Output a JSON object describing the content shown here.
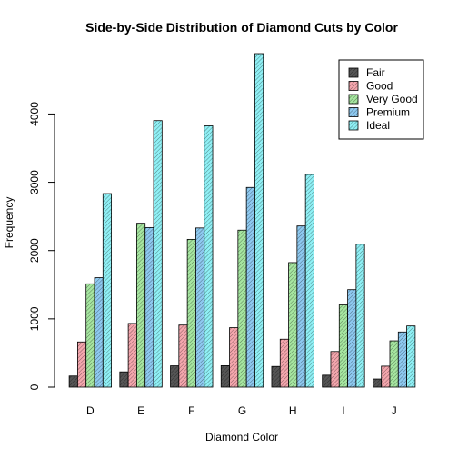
{
  "chart_data": {
    "type": "bar",
    "title": "Side-by-Side Distribution of Diamond Cuts by Color",
    "xlabel": "Diamond Color",
    "ylabel": "Frequency",
    "categories": [
      "D",
      "E",
      "F",
      "G",
      "H",
      "I",
      "J"
    ],
    "ylim": [
      0,
      4884
    ],
    "yticks": [
      "0",
      "1000",
      "2000",
      "3000",
      "4000"
    ],
    "grid": false,
    "legend_position": "top-right",
    "series": [
      {
        "name": "Fair",
        "values": [
          163,
          224,
          312,
          314,
          303,
          175,
          119
        ],
        "color": "#555555"
      },
      {
        "name": "Good",
        "values": [
          662,
          933,
          909,
          871,
          702,
          522,
          307
        ],
        "color": "#f4a6ad"
      },
      {
        "name": "Very Good",
        "values": [
          1513,
          2400,
          2164,
          2299,
          1824,
          1204,
          678
        ],
        "color": "#a6e6a0"
      },
      {
        "name": "Premium",
        "values": [
          1603,
          2337,
          2331,
          2924,
          2360,
          1428,
          808
        ],
        "color": "#8ec9f0"
      },
      {
        "name": "Ideal",
        "values": [
          2834,
          3903,
          3826,
          4884,
          3115,
          2093,
          896
        ],
        "color": "#8ff0f5"
      }
    ]
  }
}
